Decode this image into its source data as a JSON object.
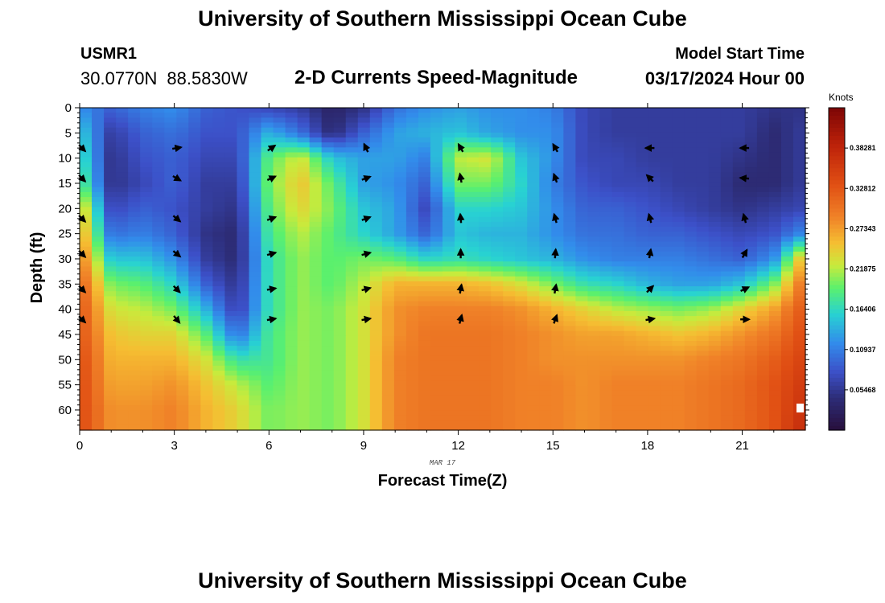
{
  "header": {
    "title": "University of Southern Mississippi Ocean Cube",
    "station_id": "USMR1",
    "latitude": "30.0770N",
    "longitude": "88.5830W",
    "subtitle": "2-D Currents Speed-Magnitude",
    "model_start_label": "Model Start Time",
    "model_start_value": "03/17/2024 Hour 00",
    "bottom_title": "University of Southern Mississippi Ocean Cube"
  },
  "chart_data": {
    "type": "heatmap",
    "xlabel": "Forecast Time(Z)",
    "ylabel": "Depth (ft)",
    "x_ticks": [
      0,
      3,
      6,
      9,
      12,
      15,
      18,
      21
    ],
    "y_ticks": [
      0,
      5,
      10,
      15,
      20,
      25,
      30,
      35,
      40,
      45,
      50,
      55,
      60
    ],
    "xlim": [
      0,
      23
    ],
    "ylim": [
      0,
      64
    ],
    "x_sublabel": "MAR 17",
    "colorbar": {
      "title": "Knots",
      "tick_labels": [
        "0.05468",
        "0.10937",
        "0.16406",
        "0.21875",
        "0.27343",
        "0.32812",
        "0.38281"
      ],
      "min": 0.0,
      "max": 0.4375
    },
    "speed_knots": {
      "hours": [
        0,
        1,
        2,
        3,
        4,
        5,
        6,
        7,
        8,
        9,
        10,
        11,
        12,
        13,
        14,
        15,
        16,
        17,
        18,
        19,
        20,
        21,
        22,
        23
      ],
      "depths_ft": [
        0,
        5,
        10,
        15,
        20,
        25,
        30,
        35,
        40,
        45,
        50,
        55,
        60,
        65
      ],
      "values": [
        [
          0.12,
          0.09,
          0.11,
          0.12,
          0.09,
          0.08,
          0.07,
          0.06,
          0.03,
          0.05,
          0.1,
          0.12,
          0.13,
          0.12,
          0.12,
          0.11,
          0.07,
          0.06,
          0.06,
          0.06,
          0.06,
          0.06,
          0.05,
          0.05
        ],
        [
          0.16,
          0.06,
          0.09,
          0.1,
          0.08,
          0.08,
          0.14,
          0.1,
          0.04,
          0.09,
          0.13,
          0.14,
          0.15,
          0.13,
          0.12,
          0.12,
          0.07,
          0.06,
          0.06,
          0.06,
          0.06,
          0.06,
          0.04,
          0.06
        ],
        [
          0.18,
          0.05,
          0.08,
          0.09,
          0.07,
          0.07,
          0.19,
          0.23,
          0.15,
          0.13,
          0.13,
          0.11,
          0.22,
          0.23,
          0.15,
          0.12,
          0.07,
          0.07,
          0.06,
          0.06,
          0.06,
          0.05,
          0.04,
          0.06
        ],
        [
          0.2,
          0.05,
          0.07,
          0.09,
          0.06,
          0.06,
          0.2,
          0.25,
          0.19,
          0.13,
          0.12,
          0.09,
          0.2,
          0.2,
          0.16,
          0.11,
          0.08,
          0.07,
          0.07,
          0.06,
          0.06,
          0.04,
          0.04,
          0.06
        ],
        [
          0.26,
          0.07,
          0.09,
          0.08,
          0.06,
          0.05,
          0.19,
          0.24,
          0.2,
          0.15,
          0.13,
          0.07,
          0.16,
          0.16,
          0.15,
          0.12,
          0.09,
          0.09,
          0.08,
          0.07,
          0.06,
          0.05,
          0.06,
          0.07
        ],
        [
          0.28,
          0.1,
          0.11,
          0.09,
          0.05,
          0.04,
          0.18,
          0.22,
          0.19,
          0.16,
          0.13,
          0.09,
          0.15,
          0.14,
          0.14,
          0.12,
          0.1,
          0.1,
          0.09,
          0.09,
          0.08,
          0.07,
          0.08,
          0.12
        ],
        [
          0.3,
          0.15,
          0.15,
          0.12,
          0.06,
          0.04,
          0.17,
          0.21,
          0.19,
          0.2,
          0.19,
          0.16,
          0.17,
          0.16,
          0.15,
          0.14,
          0.12,
          0.11,
          0.11,
          0.11,
          0.1,
          0.09,
          0.12,
          0.27
        ],
        [
          0.32,
          0.2,
          0.19,
          0.16,
          0.09,
          0.05,
          0.17,
          0.21,
          0.19,
          0.22,
          0.26,
          0.26,
          0.26,
          0.25,
          0.23,
          0.2,
          0.17,
          0.16,
          0.14,
          0.13,
          0.13,
          0.15,
          0.2,
          0.31
        ],
        [
          0.33,
          0.23,
          0.22,
          0.2,
          0.14,
          0.06,
          0.17,
          0.21,
          0.2,
          0.23,
          0.28,
          0.29,
          0.29,
          0.29,
          0.28,
          0.26,
          0.24,
          0.22,
          0.21,
          0.2,
          0.21,
          0.24,
          0.27,
          0.33
        ],
        [
          0.33,
          0.25,
          0.24,
          0.24,
          0.19,
          0.1,
          0.18,
          0.21,
          0.2,
          0.23,
          0.28,
          0.3,
          0.3,
          0.3,
          0.29,
          0.28,
          0.27,
          0.27,
          0.26,
          0.25,
          0.26,
          0.28,
          0.3,
          0.34
        ],
        [
          0.34,
          0.26,
          0.26,
          0.26,
          0.23,
          0.17,
          0.18,
          0.21,
          0.2,
          0.23,
          0.29,
          0.3,
          0.3,
          0.3,
          0.29,
          0.28,
          0.28,
          0.28,
          0.28,
          0.28,
          0.29,
          0.3,
          0.32,
          0.35
        ],
        [
          0.34,
          0.27,
          0.27,
          0.28,
          0.25,
          0.22,
          0.19,
          0.21,
          0.2,
          0.23,
          0.29,
          0.3,
          0.3,
          0.3,
          0.29,
          0.29,
          0.28,
          0.29,
          0.29,
          0.29,
          0.3,
          0.31,
          0.33,
          0.36
        ],
        [
          0.34,
          0.28,
          0.28,
          0.29,
          0.26,
          0.24,
          0.2,
          0.21,
          0.2,
          0.23,
          0.29,
          0.3,
          0.3,
          0.3,
          0.29,
          0.29,
          0.28,
          0.29,
          0.29,
          0.29,
          0.3,
          0.31,
          0.33,
          0.37
        ],
        [
          0.34,
          0.28,
          0.28,
          0.29,
          0.26,
          0.24,
          0.2,
          0.21,
          0.2,
          0.23,
          0.29,
          0.3,
          0.3,
          0.3,
          0.29,
          0.29,
          0.28,
          0.29,
          0.29,
          0.29,
          0.3,
          0.31,
          0.33,
          0.38
        ]
      ]
    },
    "current_vectors": {
      "hours": [
        0,
        3,
        6,
        9,
        12,
        15,
        18,
        21
      ],
      "depths_ft": [
        8,
        14,
        22,
        29,
        36,
        42
      ],
      "direction_deg": [
        [
          135,
          135,
          135,
          135,
          135,
          135
        ],
        [
          80,
          120,
          130,
          130,
          135,
          140
        ],
        [
          55,
          65,
          70,
          75,
          80,
          80
        ],
        [
          335,
          70,
          70,
          75,
          75,
          80
        ],
        [
          330,
          350,
          355,
          0,
          10,
          15
        ],
        [
          330,
          340,
          345,
          5,
          10,
          20
        ],
        [
          270,
          315,
          345,
          10,
          45,
          80
        ],
        [
          270,
          275,
          345,
          30,
          65,
          90
        ]
      ]
    }
  }
}
